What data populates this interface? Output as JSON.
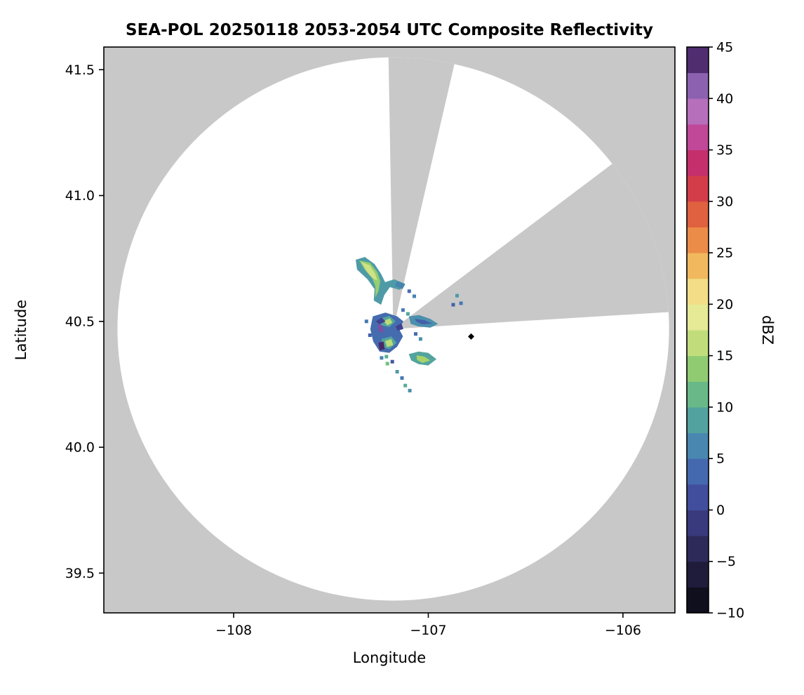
{
  "title": "SEA-POL 20250118 2053-2054 UTC Composite Reflectivity",
  "axes": {
    "xlabel": "Longitude",
    "ylabel": "Latitude"
  },
  "chart_data": {
    "type": "radar_ppi_composite_reflectivity",
    "title": "SEA-POL 20250118 2053-2054 UTC Composite Reflectivity",
    "xlabel": "Longitude",
    "ylabel": "Latitude",
    "xlim": [
      -108.667,
      -105.733
    ],
    "ylim": [
      39.342,
      41.59
    ],
    "xticks": {
      "values": [
        -108,
        -107,
        -106
      ],
      "labels": [
        "−108",
        "−107",
        "−106"
      ]
    },
    "yticks": {
      "values": [
        39.5,
        40.0,
        40.5,
        41.0,
        41.5
      ],
      "labels": [
        "39.5",
        "40.0",
        "40.5",
        "41.0",
        "41.5"
      ]
    },
    "grid": false,
    "nodata_color": "#c8c8c8",
    "coverage_color": "#ffffff",
    "frame_color": "#000000",
    "radar_center": [
      -107.18,
      40.47
    ],
    "range_km": 120,
    "blocked_sectors_deg": [
      [
        -1,
        13
      ],
      [
        53,
        86.5
      ]
    ],
    "colorbar": {
      "label": "dBZ",
      "min": -10,
      "max": 45,
      "step": 2.5,
      "tick_values": [
        -10,
        -5,
        0,
        5,
        10,
        15,
        20,
        25,
        30,
        35,
        40,
        45
      ],
      "tick_labels": [
        "−10",
        "−5",
        "0",
        "5",
        "10",
        "15",
        "20",
        "25",
        "30",
        "35",
        "40",
        "45"
      ]
    },
    "colormap": [
      [
        -10,
        "#09090e"
      ],
      [
        -7.5,
        "#17142c"
      ],
      [
        -5,
        "#262349"
      ],
      [
        -2.5,
        "#343168"
      ],
      [
        0,
        "#3e4291"
      ],
      [
        2.5,
        "#445aa8"
      ],
      [
        5,
        "#4678b4"
      ],
      [
        7.5,
        "#4c96ab"
      ],
      [
        10,
        "#57ae95"
      ],
      [
        12.5,
        "#78c379"
      ],
      [
        15,
        "#a8d36a"
      ],
      [
        17.5,
        "#d9e68b"
      ],
      [
        20,
        "#f2eb9e"
      ],
      [
        22.5,
        "#f3cf6d"
      ],
      [
        25,
        "#efa14f"
      ],
      [
        27.5,
        "#e77741"
      ],
      [
        30,
        "#d94a3d"
      ],
      [
        32.5,
        "#ca2f55"
      ],
      [
        35,
        "#bd2e82"
      ],
      [
        37.5,
        "#c45fae"
      ],
      [
        40,
        "#a87fc6"
      ],
      [
        42.5,
        "#6f4499"
      ],
      [
        45,
        "#2f1545"
      ]
    ],
    "echo_polygons": [
      {
        "dbz": 8,
        "pts": [
          [
            -107.373,
            40.745
          ],
          [
            -107.326,
            40.756
          ],
          [
            -107.276,
            40.728
          ],
          [
            -107.243,
            40.689
          ],
          [
            -107.222,
            40.656
          ],
          [
            -107.175,
            40.667
          ],
          [
            -107.121,
            40.65
          ],
          [
            -107.146,
            40.625
          ],
          [
            -107.197,
            40.636
          ],
          [
            -107.226,
            40.605
          ],
          [
            -107.243,
            40.566
          ],
          [
            -107.28,
            40.583
          ],
          [
            -107.276,
            40.628
          ],
          [
            -107.312,
            40.667
          ],
          [
            -107.366,
            40.706
          ]
        ]
      },
      {
        "dbz": 14,
        "pts": [
          [
            -107.355,
            40.742
          ],
          [
            -107.3,
            40.733
          ],
          [
            -107.262,
            40.695
          ],
          [
            -107.247,
            40.66
          ],
          [
            -107.256,
            40.62
          ],
          [
            -107.272,
            40.595
          ],
          [
            -107.272,
            40.64
          ],
          [
            -107.287,
            40.67
          ],
          [
            -107.327,
            40.706
          ]
        ]
      },
      {
        "dbz": 17,
        "pts": [
          [
            -107.345,
            40.737
          ],
          [
            -107.3,
            40.722
          ],
          [
            -107.272,
            40.688
          ],
          [
            -107.262,
            40.662
          ],
          [
            -107.287,
            40.672
          ],
          [
            -107.317,
            40.7
          ]
        ]
      },
      {
        "dbz": 6,
        "pts": [
          [
            -107.16,
            40.66
          ],
          [
            -107.118,
            40.648
          ],
          [
            -107.133,
            40.628
          ],
          [
            -107.172,
            40.642
          ]
        ]
      },
      {
        "dbz": 4,
        "pts": [
          [
            -107.285,
            40.52
          ],
          [
            -107.22,
            40.535
          ],
          [
            -107.16,
            40.52
          ],
          [
            -107.128,
            40.5
          ],
          [
            -107.15,
            40.47
          ],
          [
            -107.13,
            40.44
          ],
          [
            -107.16,
            40.4
          ],
          [
            -107.2,
            40.375
          ],
          [
            -107.25,
            40.38
          ],
          [
            -107.283,
            40.42
          ],
          [
            -107.298,
            40.47
          ]
        ]
      },
      {
        "dbz": 9,
        "pts": [
          [
            -107.252,
            40.51
          ],
          [
            -107.2,
            40.522
          ],
          [
            -107.168,
            40.5
          ],
          [
            -107.2,
            40.478
          ],
          [
            -107.25,
            40.485
          ]
        ]
      },
      {
        "dbz": 9,
        "pts": [
          [
            -107.24,
            40.43
          ],
          [
            -107.19,
            40.44
          ],
          [
            -107.163,
            40.415
          ],
          [
            -107.2,
            40.39
          ],
          [
            -107.24,
            40.4
          ]
        ]
      },
      {
        "dbz": 16,
        "pts": [
          [
            -107.23,
            40.502
          ],
          [
            -107.198,
            40.512
          ],
          [
            -107.184,
            40.495
          ],
          [
            -107.21,
            40.484
          ]
        ]
      },
      {
        "dbz": 16,
        "pts": [
          [
            -107.222,
            40.422
          ],
          [
            -107.19,
            40.43
          ],
          [
            -107.18,
            40.406
          ],
          [
            -107.212,
            40.398
          ]
        ]
      },
      {
        "dbz": 0,
        "pts": [
          [
            -107.27,
            40.5
          ],
          [
            -107.24,
            40.515
          ],
          [
            -107.22,
            40.5
          ],
          [
            -107.25,
            40.488
          ]
        ]
      },
      {
        "dbz": 0,
        "pts": [
          [
            -107.168,
            40.48
          ],
          [
            -107.138,
            40.492
          ],
          [
            -107.128,
            40.47
          ],
          [
            -107.158,
            40.463
          ]
        ]
      },
      {
        "dbz": 42,
        "pts": [
          [
            -107.26,
            40.49
          ],
          [
            -107.235,
            40.485
          ],
          [
            -107.23,
            40.455
          ],
          [
            -107.256,
            40.46
          ]
        ]
      },
      {
        "dbz": 44,
        "pts": [
          [
            -107.256,
            40.415
          ],
          [
            -107.23,
            40.42
          ],
          [
            -107.224,
            40.39
          ],
          [
            -107.25,
            40.385
          ]
        ]
      },
      {
        "dbz": 7,
        "pts": [
          [
            -107.1,
            40.52
          ],
          [
            -107.048,
            40.525
          ],
          [
            -106.99,
            40.51
          ],
          [
            -106.95,
            40.49
          ],
          [
            -106.99,
            40.475
          ],
          [
            -107.05,
            40.48
          ],
          [
            -107.09,
            40.49
          ]
        ]
      },
      {
        "dbz": 3,
        "pts": [
          [
            -107.07,
            40.51
          ],
          [
            -107.02,
            40.505
          ],
          [
            -106.98,
            40.492
          ],
          [
            -107.03,
            40.488
          ],
          [
            -107.06,
            40.498
          ]
        ]
      },
      {
        "dbz": 9,
        "pts": [
          [
            -107.1,
            40.37
          ],
          [
            -107.05,
            40.38
          ],
          [
            -107.0,
            40.375
          ],
          [
            -106.958,
            40.35
          ],
          [
            -107.0,
            40.325
          ],
          [
            -107.05,
            40.33
          ],
          [
            -107.088,
            40.345
          ]
        ]
      },
      {
        "dbz": 15,
        "pts": [
          [
            -107.06,
            40.365
          ],
          [
            -107.02,
            40.36
          ],
          [
            -106.99,
            40.345
          ],
          [
            -107.03,
            40.335
          ],
          [
            -107.058,
            40.347
          ]
        ]
      }
    ],
    "echo_cells": [
      [
        -107.16,
        40.3,
        8
      ],
      [
        -107.135,
        40.275,
        5
      ],
      [
        -107.118,
        40.245,
        10
      ],
      [
        -107.095,
        40.225,
        7
      ],
      [
        -107.185,
        40.34,
        2
      ],
      [
        -107.21,
        40.332,
        12
      ],
      [
        -106.852,
        40.602,
        8
      ],
      [
        -106.832,
        40.572,
        5
      ],
      [
        -106.872,
        40.566,
        3
      ],
      [
        -107.098,
        40.62,
        4
      ],
      [
        -107.072,
        40.6,
        6
      ],
      [
        -107.318,
        40.5,
        5
      ],
      [
        -107.3,
        40.445,
        3
      ],
      [
        -107.24,
        40.355,
        6
      ],
      [
        -107.215,
        40.36,
        10
      ],
      [
        -107.065,
        40.45,
        4
      ],
      [
        -107.04,
        40.43,
        7
      ],
      [
        -107.13,
        40.545,
        5
      ],
      [
        -107.105,
        40.53,
        9
      ]
    ],
    "site_marker": {
      "lon": -106.78,
      "lat": 40.44,
      "shape": "diamond",
      "color": "#000000"
    }
  }
}
